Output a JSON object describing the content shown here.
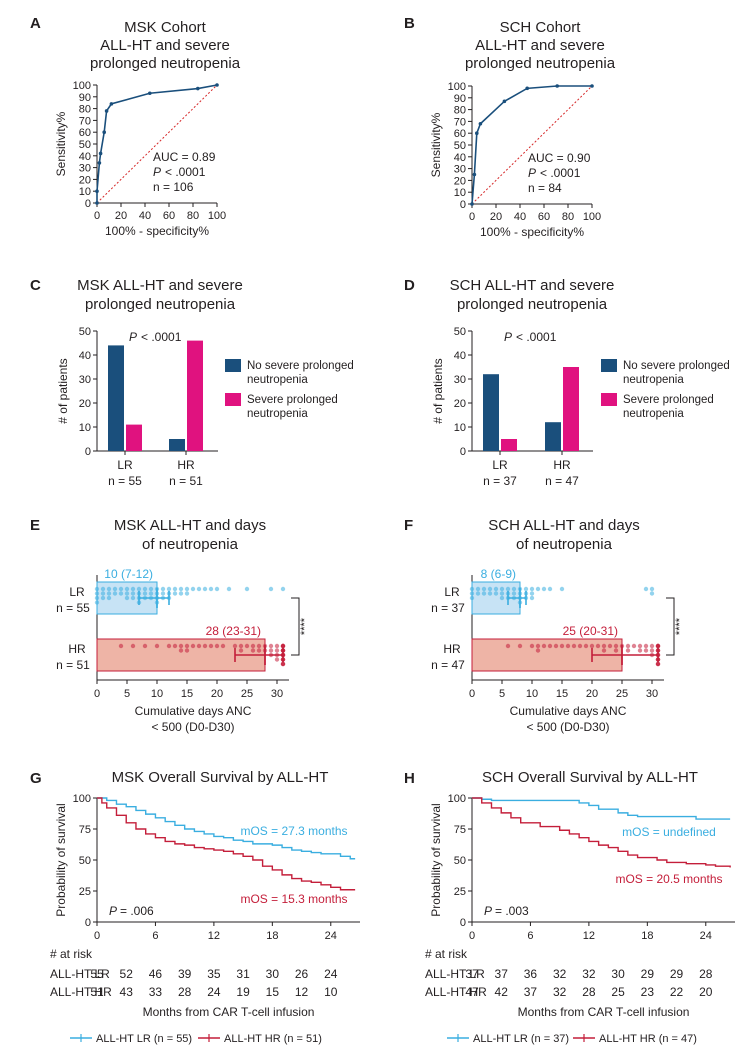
{
  "colors": {
    "navy": "#1a4f7c",
    "magenta": "#e0127f",
    "lightblue": "#3aaee0",
    "red": "#c41e3a",
    "ref_line": "#d62728",
    "box_lr_fill": "#c7e3f5",
    "box_hr_fill": "#eeb4a6",
    "text": "#231f20"
  },
  "chart_data": [
    {
      "panel": "A",
      "type": "line",
      "title": [
        "MSK Cohort",
        "ALL-HT and severe",
        "prolonged neutropenia"
      ],
      "xlabel": "100% - specificity%",
      "ylabel": "Sensitivity%",
      "xlim": [
        0,
        100
      ],
      "ylim": [
        0,
        100
      ],
      "xticks": [
        0,
        20,
        40,
        60,
        80,
        100
      ],
      "yticks": [
        0,
        10,
        20,
        30,
        40,
        50,
        60,
        70,
        80,
        90,
        100
      ],
      "points": [
        [
          0,
          0
        ],
        [
          0,
          10
        ],
        [
          2,
          34
        ],
        [
          3,
          42
        ],
        [
          6,
          60
        ],
        [
          8,
          78
        ],
        [
          12,
          84
        ],
        [
          44,
          93
        ],
        [
          84,
          97
        ],
        [
          100,
          100
        ]
      ],
      "annotation": {
        "auc": "AUC = 0.89",
        "p_prefix": "P",
        "p_value": "< .0001",
        "n": "n = 106"
      }
    },
    {
      "panel": "B",
      "type": "line",
      "title": [
        "SCH Cohort",
        "ALL-HT and severe",
        "prolonged neutropenia"
      ],
      "xlabel": "100% - specificity%",
      "ylabel": "Sensitivity%",
      "xlim": [
        0,
        100
      ],
      "ylim": [
        0,
        100
      ],
      "xticks": [
        0,
        20,
        40,
        60,
        80,
        100
      ],
      "yticks": [
        0,
        10,
        20,
        30,
        40,
        50,
        60,
        70,
        80,
        90,
        100
      ],
      "points": [
        [
          0,
          0
        ],
        [
          2,
          25
        ],
        [
          4,
          60
        ],
        [
          7,
          68
        ],
        [
          27,
          87
        ],
        [
          46,
          98
        ],
        [
          71,
          100
        ],
        [
          100,
          100
        ]
      ],
      "annotation": {
        "auc": "AUC = 0.90",
        "p_prefix": "P",
        "p_value": "< .0001",
        "n": "n = 84"
      }
    },
    {
      "panel": "C",
      "type": "bar",
      "title": [
        "MSK ALL-HT and severe",
        "prolonged neutropenia"
      ],
      "ylabel": "# of patients",
      "ylim": [
        0,
        50
      ],
      "yticks": [
        0,
        10,
        20,
        30,
        40,
        50
      ],
      "categories": [
        "LR",
        "HR"
      ],
      "category_n": [
        "n = 55",
        "n = 51"
      ],
      "series": [
        {
          "name": "No severe prolonged neutropenia",
          "legend": [
            "No severe prolonged",
            "neutropenia"
          ],
          "values": [
            44,
            5
          ]
        },
        {
          "name": "Severe prolonged neutropenia",
          "legend": [
            "Severe prolonged",
            "neutropenia"
          ],
          "values": [
            11,
            46
          ]
        }
      ],
      "annotation": {
        "p_prefix": "P",
        "p_value": "< .0001"
      }
    },
    {
      "panel": "D",
      "type": "bar",
      "title": [
        "SCH ALL-HT and severe",
        "prolonged neutropenia"
      ],
      "ylabel": "# of patients",
      "ylim": [
        0,
        50
      ],
      "yticks": [
        0,
        10,
        20,
        30,
        40,
        50
      ],
      "categories": [
        "LR",
        "HR"
      ],
      "category_n": [
        "n = 37",
        "n = 47"
      ],
      "series": [
        {
          "name": "No severe prolonged neutropenia",
          "legend": [
            "No severe prolonged",
            "neutropenia"
          ],
          "values": [
            32,
            12
          ]
        },
        {
          "name": "Severe prolonged neutropenia",
          "legend": [
            "Severe prolonged",
            "neutropenia"
          ],
          "values": [
            5,
            35
          ]
        }
      ],
      "annotation": {
        "p_prefix": "P",
        "p_value": "< .0001"
      }
    },
    {
      "panel": "E",
      "type": "bar",
      "orientation": "horizontal",
      "title": [
        "MSK ALL-HT and days",
        "of neutropenia"
      ],
      "xlabel": [
        "Cumulative days ANC",
        "< 500 (D0-D30)"
      ],
      "xlim": [
        0,
        32
      ],
      "xticks": [
        0,
        5,
        10,
        15,
        20,
        25,
        30
      ],
      "groups": [
        {
          "name": "LR",
          "n": "n = 55",
          "median": 10,
          "iqr": [
            7,
            12
          ],
          "label": "10 (7-12)",
          "points": [
            0,
            0,
            0,
            0,
            1,
            1,
            1,
            2,
            2,
            2,
            3,
            3,
            4,
            4,
            5,
            5,
            5,
            6,
            6,
            6,
            7,
            7,
            7,
            7,
            8,
            8,
            8,
            9,
            9,
            9,
            10,
            10,
            10,
            10,
            11,
            11,
            11,
            12,
            12,
            12,
            13,
            13,
            14,
            14,
            15,
            15,
            16,
            17,
            18,
            19,
            20,
            22,
            25,
            29,
            31
          ]
        },
        {
          "name": "HR",
          "n": "n = 51",
          "median": 28,
          "iqr": [
            23,
            31
          ],
          "label": "28 (23-31)",
          "points": [
            4,
            6,
            8,
            10,
            12,
            13,
            14,
            14,
            15,
            15,
            16,
            17,
            18,
            19,
            20,
            21,
            23,
            24,
            24,
            25,
            26,
            26,
            27,
            27,
            28,
            28,
            29,
            29,
            29,
            30,
            30,
            30,
            30,
            31,
            31,
            31,
            31,
            31,
            31,
            31,
            31,
            31,
            31,
            31,
            31,
            31,
            31,
            31,
            31,
            31,
            31
          ]
        }
      ],
      "significance": "****"
    },
    {
      "panel": "F",
      "type": "bar",
      "orientation": "horizontal",
      "title": [
        "SCH ALL-HT and days",
        "of neutropenia"
      ],
      "xlabel": [
        "Cumulative days ANC",
        "< 500 (D0-D30)"
      ],
      "xlim": [
        0,
        32
      ],
      "xticks": [
        0,
        5,
        10,
        15,
        20,
        25,
        30
      ],
      "groups": [
        {
          "name": "LR",
          "n": "n = 37",
          "median": 8,
          "iqr": [
            6,
            9
          ],
          "label": "8 (6-9)",
          "points": [
            0,
            0,
            0,
            1,
            1,
            2,
            2,
            3,
            3,
            4,
            4,
            5,
            5,
            5,
            6,
            6,
            6,
            7,
            7,
            7,
            8,
            8,
            8,
            8,
            9,
            9,
            9,
            10,
            10,
            10,
            11,
            12,
            13,
            15,
            29,
            30,
            30
          ]
        },
        {
          "name": "HR",
          "n": "n = 47",
          "median": 25,
          "iqr": [
            20,
            31
          ],
          "label": "25 (20-31)",
          "points": [
            6,
            8,
            10,
            11,
            11,
            12,
            13,
            14,
            15,
            16,
            17,
            18,
            19,
            20,
            21,
            22,
            22,
            23,
            24,
            24,
            25,
            26,
            26,
            27,
            28,
            28,
            29,
            29,
            30,
            30,
            30,
            31,
            31,
            31,
            31,
            31,
            31,
            31,
            31,
            31,
            31,
            31,
            31,
            31,
            31,
            31,
            31
          ]
        }
      ],
      "significance": "****"
    },
    {
      "panel": "G",
      "type": "line",
      "title": "MSK Overall Survival by ALL-HT",
      "xlabel": "Months from CAR T-cell infusion",
      "ylabel": "Probability of survival",
      "xlim": [
        0,
        27
      ],
      "ylim": [
        0,
        100
      ],
      "xticks": [
        0,
        6,
        12,
        18,
        24
      ],
      "yticks": [
        0,
        25,
        50,
        75,
        100
      ],
      "series": [
        {
          "name": "ALL-HT LR",
          "legend": "ALL-HT LR (n = 55)",
          "median_label": "mOS = 27.3 months",
          "color_key": "lightblue",
          "steps": [
            [
              0,
              100
            ],
            [
              1,
              98
            ],
            [
              2,
              95
            ],
            [
              3,
              93
            ],
            [
              4,
              90
            ],
            [
              5,
              87
            ],
            [
              6,
              84
            ],
            [
              7,
              81
            ],
            [
              8,
              78
            ],
            [
              9,
              75
            ],
            [
              10,
              73
            ],
            [
              11,
              71
            ],
            [
              12,
              69
            ],
            [
              13,
              68
            ],
            [
              14,
              66
            ],
            [
              15,
              65
            ],
            [
              16,
              63
            ],
            [
              18,
              62
            ],
            [
              19,
              60
            ],
            [
              20,
              58
            ],
            [
              21,
              57
            ],
            [
              22,
              56
            ],
            [
              23,
              55
            ],
            [
              24,
              55
            ],
            [
              25,
              53
            ],
            [
              26,
              51
            ],
            [
              26.5,
              51
            ]
          ]
        },
        {
          "name": "ALL-HT HR",
          "legend": "ALL-HT HR (n = 51)",
          "median_label": "mOS = 15.3 months",
          "color_key": "red",
          "steps": [
            [
              0,
              100
            ],
            [
              0.5,
              96
            ],
            [
              1,
              92
            ],
            [
              2,
              86
            ],
            [
              3,
              80
            ],
            [
              4,
              75
            ],
            [
              5,
              71
            ],
            [
              6,
              68
            ],
            [
              7,
              65
            ],
            [
              8,
              63
            ],
            [
              9,
              62
            ],
            [
              10,
              60
            ],
            [
              11,
              59
            ],
            [
              12,
              58
            ],
            [
              13,
              57
            ],
            [
              14,
              55
            ],
            [
              15,
              53
            ],
            [
              16,
              50
            ],
            [
              17,
              45
            ],
            [
              18,
              42
            ],
            [
              19,
              38
            ],
            [
              20,
              35
            ],
            [
              21,
              33
            ],
            [
              22,
              32
            ],
            [
              23,
              30
            ],
            [
              24,
              28
            ],
            [
              25,
              26
            ],
            [
              26.5,
              26
            ]
          ]
        }
      ],
      "annotation": {
        "p_prefix": "P",
        "p_value": "= .006"
      },
      "at_risk": {
        "header": "# at risk",
        "rows": [
          {
            "label": "ALL-HT LR",
            "values": [
              "55",
              "52",
              "46",
              "39",
              "35",
              "31",
              "30",
              "26",
              "24"
            ]
          },
          {
            "label": "ALL-HT HR",
            "values": [
              "51",
              "43",
              "33",
              "28",
              "24",
              "19",
              "15",
              "12",
              "10"
            ]
          }
        ]
      }
    },
    {
      "panel": "H",
      "type": "line",
      "title": "SCH Overall Survival by ALL-HT",
      "xlabel": "Months from CAR T-cell infusion",
      "ylabel": "Probability of survival",
      "xlim": [
        0,
        27
      ],
      "ylim": [
        0,
        100
      ],
      "xticks": [
        0,
        6,
        12,
        18,
        24
      ],
      "yticks": [
        0,
        25,
        50,
        75,
        100
      ],
      "series": [
        {
          "name": "ALL-HT LR",
          "legend": "ALL-HT LR (n = 37)",
          "median_label": "mOS = undefined",
          "color_key": "lightblue",
          "steps": [
            [
              0,
              100
            ],
            [
              1,
              99
            ],
            [
              2,
              98
            ],
            [
              10,
              98
            ],
            [
              11,
              96
            ],
            [
              12,
              94
            ],
            [
              13,
              91
            ],
            [
              15,
              88
            ],
            [
              16,
              86
            ],
            [
              17,
              85
            ],
            [
              22,
              85
            ],
            [
              23,
              83
            ],
            [
              26.5,
              83
            ]
          ]
        },
        {
          "name": "ALL-HT HR",
          "legend": "ALL-HT HR (n = 47)",
          "median_label": "mOS = 20.5 months",
          "color_key": "red",
          "steps": [
            [
              0,
              100
            ],
            [
              1,
              96
            ],
            [
              2,
              92
            ],
            [
              3,
              88
            ],
            [
              4,
              84
            ],
            [
              5,
              80
            ],
            [
              7,
              77
            ],
            [
              9,
              74
            ],
            [
              10,
              71
            ],
            [
              11,
              68
            ],
            [
              12,
              65
            ],
            [
              13,
              62
            ],
            [
              14,
              60
            ],
            [
              15,
              57
            ],
            [
              16,
              54
            ],
            [
              17,
              52
            ],
            [
              19,
              50
            ],
            [
              20,
              48
            ],
            [
              22,
              47
            ],
            [
              24,
              46
            ],
            [
              25,
              45
            ],
            [
              26.5,
              44
            ]
          ]
        }
      ],
      "annotation": {
        "p_prefix": "P",
        "p_value": "= .003"
      },
      "at_risk": {
        "header": "# at risk",
        "rows": [
          {
            "label": "ALL-HT LR",
            "values": [
              "37",
              "37",
              "36",
              "32",
              "32",
              "30",
              "29",
              "29",
              "28"
            ]
          },
          {
            "label": "ALL-HT HR",
            "values": [
              "47",
              "42",
              "37",
              "32",
              "28",
              "25",
              "23",
              "22",
              "20"
            ]
          }
        ]
      }
    }
  ]
}
